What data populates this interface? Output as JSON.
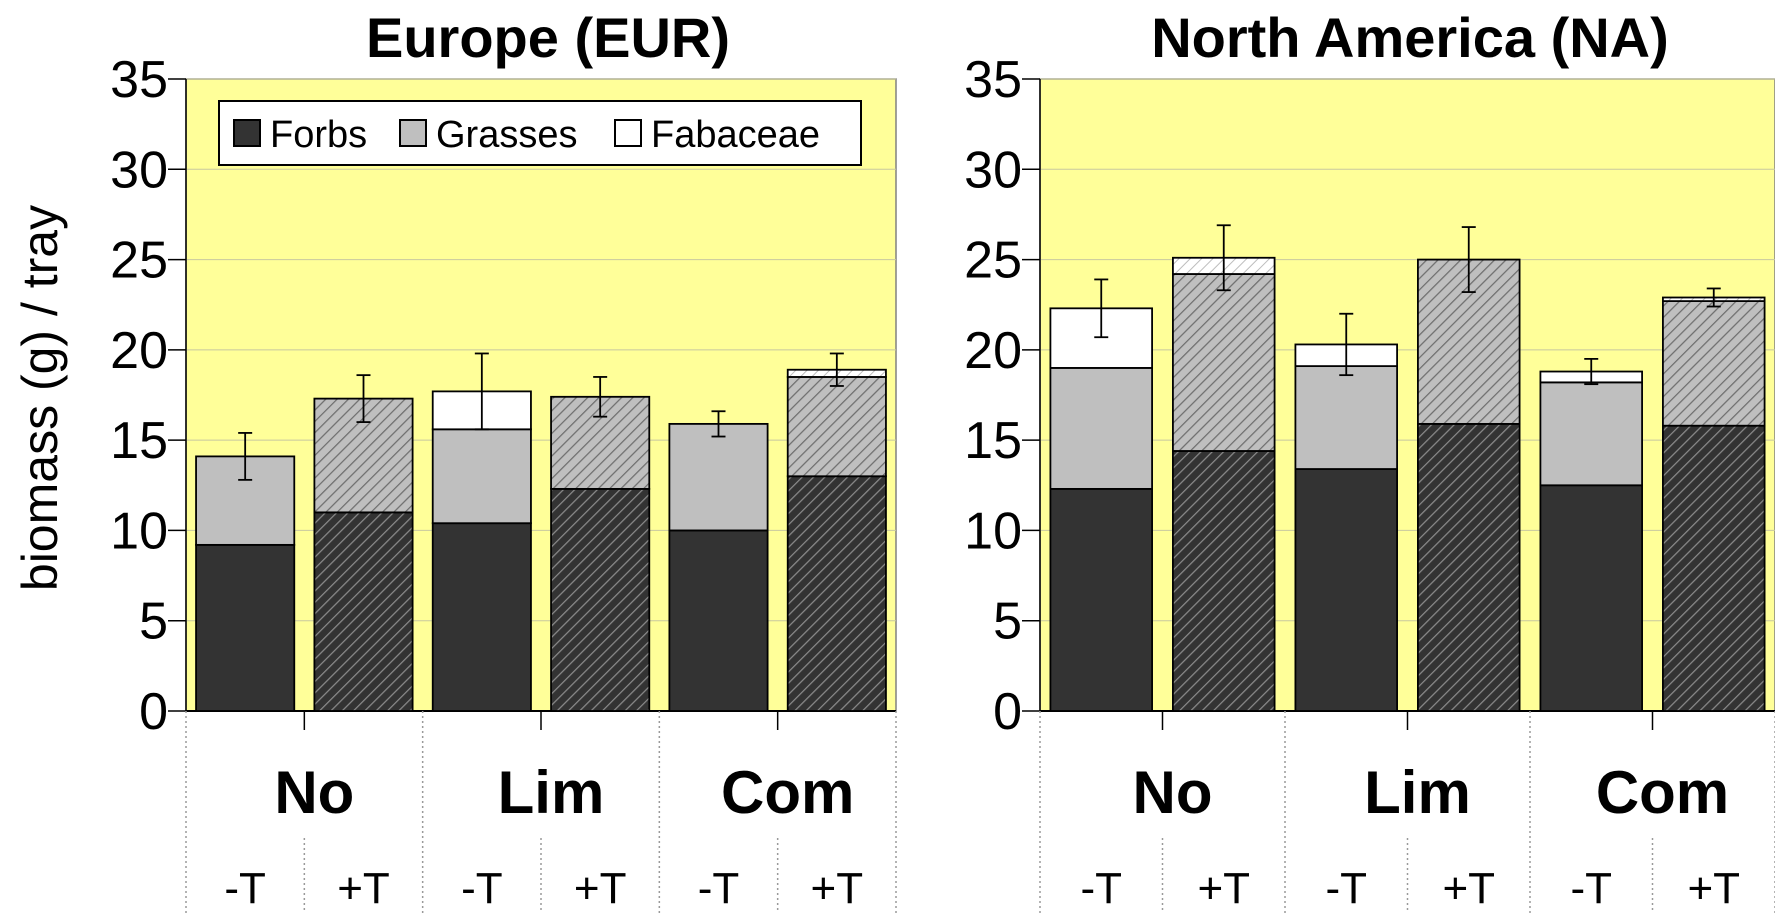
{
  "y_axis_label": "biomass (g) / tray",
  "legend": {
    "items": [
      {
        "label": "Forbs",
        "color": "#333333"
      },
      {
        "label": "Grasses",
        "color": "#bfbfbf"
      },
      {
        "label": "Fabaceae",
        "color": "#ffffff"
      }
    ]
  },
  "colors": {
    "plot_background": "#ffff99",
    "forbs": "#333333",
    "grasses": "#bfbfbf",
    "fabaceae": "#ffffff"
  },
  "chart_data": [
    {
      "type": "bar",
      "stacked": true,
      "title": "Europe (EUR)",
      "ylabel": "biomass (g) / tray",
      "ylim": [
        0,
        35
      ],
      "yticks": [
        0,
        5,
        10,
        15,
        20,
        25,
        30,
        35
      ],
      "groups": [
        "No",
        "Lim",
        "Com"
      ],
      "categories": [
        "-T",
        "+T",
        "-T",
        "+T",
        "-T",
        "+T"
      ],
      "hatched": [
        false,
        true,
        false,
        true,
        false,
        true
      ],
      "series": [
        {
          "name": "Forbs",
          "values": [
            9.2,
            11.0,
            10.4,
            12.3,
            10.0,
            13.0
          ]
        },
        {
          "name": "Grasses",
          "values": [
            4.9,
            6.3,
            5.2,
            5.1,
            5.9,
            5.5
          ]
        },
        {
          "name": "Fabaceae",
          "values": [
            0.0,
            0.0,
            2.1,
            0.0,
            0.0,
            0.4
          ]
        }
      ],
      "totals": [
        14.1,
        17.3,
        17.7,
        17.4,
        15.9,
        18.9
      ],
      "error": [
        1.3,
        1.3,
        2.1,
        1.1,
        0.7,
        0.9
      ],
      "legend_position": "top-left",
      "grid": true
    },
    {
      "type": "bar",
      "stacked": true,
      "title": "North America (NA)",
      "ylim": [
        0,
        35
      ],
      "yticks": [
        0,
        5,
        10,
        15,
        20,
        25,
        30,
        35
      ],
      "groups": [
        "No",
        "Lim",
        "Com"
      ],
      "categories": [
        "-T",
        "+T",
        "-T",
        "+T",
        "-T",
        "+T"
      ],
      "hatched": [
        false,
        true,
        false,
        true,
        false,
        true
      ],
      "series": [
        {
          "name": "Forbs",
          "values": [
            12.3,
            14.4,
            13.4,
            15.9,
            12.5,
            15.8
          ]
        },
        {
          "name": "Grasses",
          "values": [
            6.7,
            9.8,
            5.7,
            9.1,
            5.7,
            6.9
          ]
        },
        {
          "name": "Fabaceae",
          "values": [
            3.3,
            0.9,
            1.2,
            0.0,
            0.6,
            0.2
          ]
        }
      ],
      "totals": [
        22.3,
        25.1,
        20.3,
        25.0,
        18.8,
        22.9
      ],
      "error": [
        1.6,
        1.8,
        1.7,
        1.8,
        0.7,
        0.5
      ],
      "grid": true
    }
  ]
}
